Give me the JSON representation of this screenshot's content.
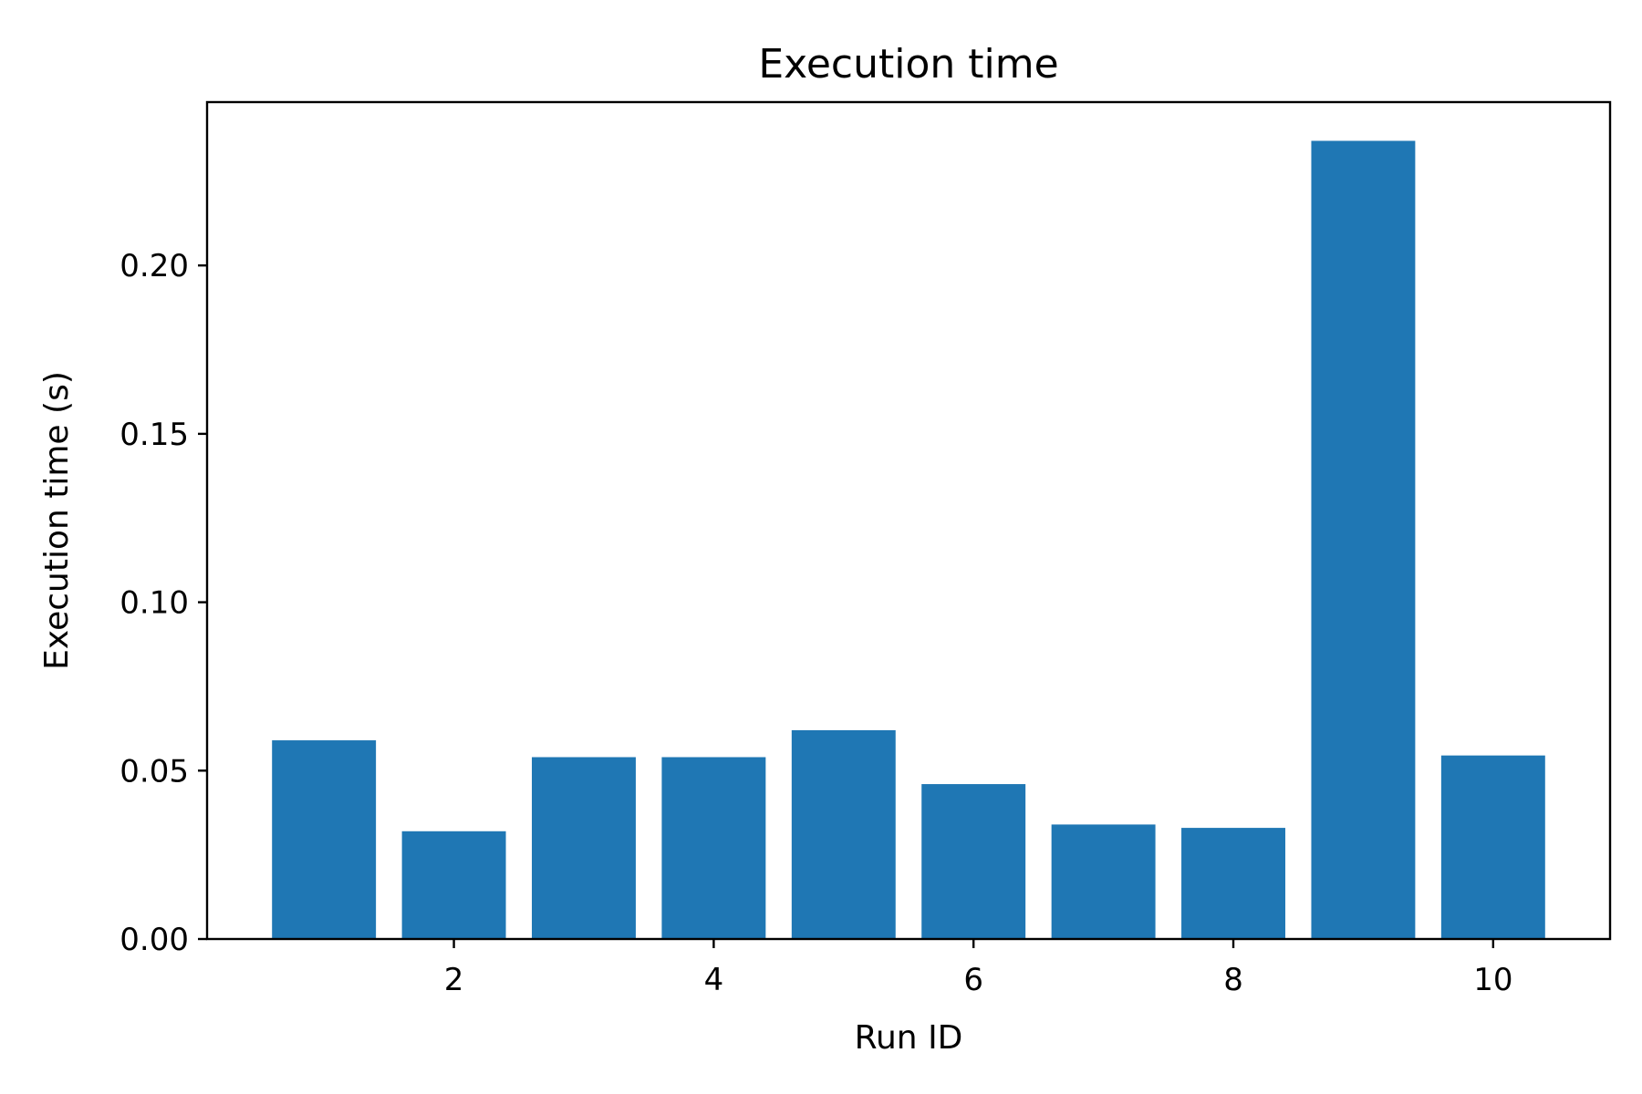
{
  "chart_data": {
    "type": "bar",
    "title": "Execution time",
    "xlabel": "Run ID",
    "ylabel": "Execution time (s)",
    "categories": [
      1,
      2,
      3,
      4,
      5,
      6,
      7,
      8,
      9,
      10
    ],
    "values": [
      0.059,
      0.032,
      0.054,
      0.054,
      0.062,
      0.046,
      0.034,
      0.033,
      0.237,
      0.0545
    ],
    "xlim": [
      0.1,
      10.9
    ],
    "ylim": [
      0,
      0.2485
    ],
    "xticks": [
      2,
      4,
      6,
      8,
      10
    ],
    "xtick_labels": [
      "2",
      "4",
      "6",
      "8",
      "10"
    ],
    "yticks": [
      0.0,
      0.05,
      0.1,
      0.15,
      0.2
    ],
    "ytick_labels": [
      "0.00",
      "0.05",
      "0.10",
      "0.15",
      "0.20"
    ],
    "bar_color": "#1f77b4",
    "grid": false,
    "legend": "none"
  }
}
